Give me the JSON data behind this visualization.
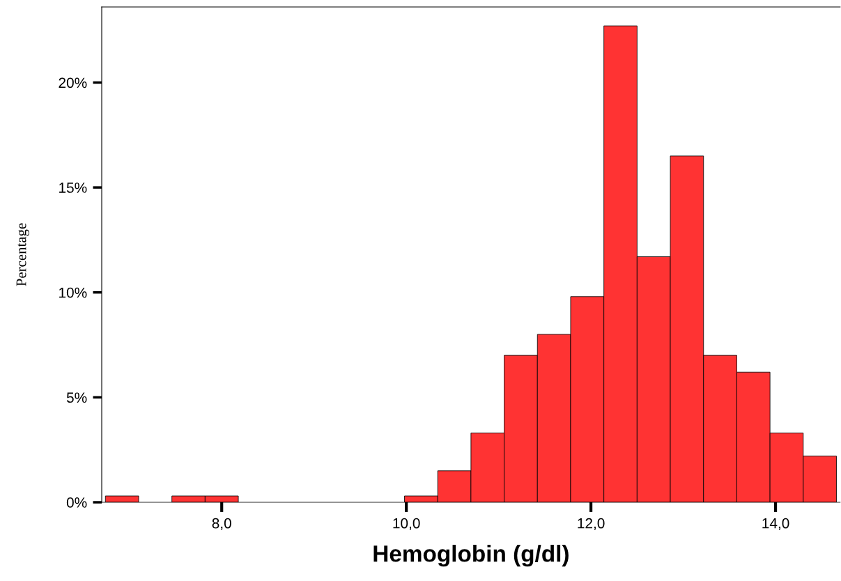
{
  "chart_data": {
    "type": "histogram",
    "xlabel": "Hemoglobin (g/dl)",
    "ylabel": "Percentage",
    "color": "#ff3333",
    "bins": [
      6.74,
      7.1,
      7.46,
      7.82,
      8.18,
      8.54,
      8.9,
      9.26,
      9.62,
      9.98,
      10.34,
      10.7,
      11.06,
      11.42,
      11.78,
      12.14,
      12.5,
      12.86,
      13.22,
      13.58,
      13.94,
      14.3,
      14.66
    ],
    "values": [
      0.3,
      0,
      0.3,
      0.3,
      0,
      0,
      0,
      0,
      0,
      0.3,
      1.5,
      3.3,
      7.0,
      8.0,
      9.8,
      22.7,
      11.7,
      16.5,
      7.0,
      6.2,
      3.3,
      2.2
    ],
    "xlim": [
      6.7,
      14.7
    ],
    "ylim": [
      0,
      23.6
    ],
    "xticks": [
      {
        "value": 8,
        "label": "8,0"
      },
      {
        "value": 10,
        "label": "10,0"
      },
      {
        "value": 12,
        "label": "12,0"
      },
      {
        "value": 14,
        "label": "14,0"
      }
    ],
    "yticks": [
      {
        "value": 0,
        "label": "0%"
      },
      {
        "value": 5,
        "label": "5%"
      },
      {
        "value": 10,
        "label": "10%"
      },
      {
        "value": 15,
        "label": "15%"
      },
      {
        "value": 20,
        "label": "20%"
      }
    ],
    "grid": false
  }
}
